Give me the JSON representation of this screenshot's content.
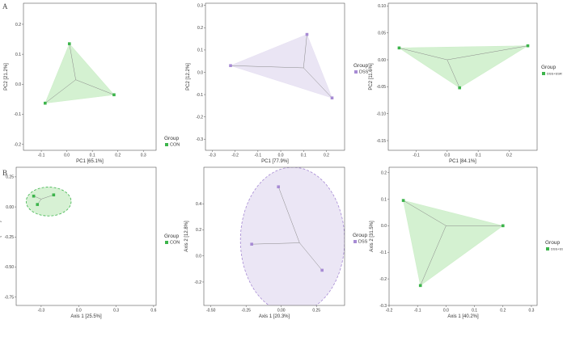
{
  "panel_labels": [
    "A",
    "B"
  ],
  "colors": {
    "con": "#3cb44b",
    "dss": "#a78bd4",
    "dss_ssr": "#3cb44b",
    "con_fill": "#cdeec9",
    "dss_fill": "#e6e0f2",
    "line": "#888888"
  },
  "chart_data": [
    {
      "type": "scatter",
      "hull": "polygon",
      "xlabel": "PC1 [65.1%]",
      "ylabel": "PC2 [21.2%]",
      "xlim": [
        -0.17,
        0.35
      ],
      "ylim": [
        -0.22,
        0.27
      ],
      "xticks": [
        -0.1,
        0,
        0.1,
        0.2,
        0.3
      ],
      "xticklabels": [
        "-0.1",
        "0.0",
        "0.1",
        "0.2",
        "0.3"
      ],
      "yticks": [
        -0.2,
        -0.1,
        0,
        0.1,
        0.2
      ],
      "yticklabels": [
        "-0.2",
        "-0.1",
        "0.0",
        "0.1",
        "0.2"
      ],
      "centroid": [
        0.035,
        0.015
      ],
      "legend_title": "Group",
      "series": [
        {
          "name": "CON",
          "color_key": "con",
          "points": [
            [
              0.01,
              0.135
            ],
            [
              -0.085,
              -0.063
            ],
            [
              0.185,
              -0.035
            ]
          ]
        }
      ]
    },
    {
      "type": "scatter",
      "hull": "polygon",
      "xlabel": "PC1 [77.9%]",
      "ylabel": "PC2 [12.2%]",
      "xlim": [
        -0.33,
        0.28
      ],
      "ylim": [
        -0.35,
        0.31
      ],
      "xticks": [
        -0.3,
        -0.2,
        -0.1,
        0,
        0.1,
        0.2
      ],
      "xticklabels": [
        "-0.3",
        "-0.2",
        "-0.1",
        "0.0",
        "0.1",
        "0.2"
      ],
      "yticks": [
        -0.3,
        -0.2,
        -0.1,
        0,
        0.1,
        0.2,
        0.3
      ],
      "yticklabels": [
        "-0.3",
        "-0.2",
        "-0.1",
        "0.0",
        "0.1",
        "0.2",
        "0.3"
      ],
      "centroid": [
        0.1,
        0.02
      ],
      "legend_title": "Group",
      "series": [
        {
          "name": "DSS",
          "color_key": "dss",
          "points": [
            [
              -0.22,
              0.03
            ],
            [
              0.115,
              0.17
            ],
            [
              0.225,
              -0.115
            ]
          ]
        }
      ]
    },
    {
      "type": "scatter",
      "hull": "polygon",
      "xlabel": "PC1 [84.1%]",
      "ylabel": "PC2 [11.6%]",
      "xlim": [
        -0.19,
        0.29
      ],
      "ylim": [
        -0.168,
        0.105
      ],
      "xticks": [
        -0.1,
        0,
        0.1,
        0.2
      ],
      "xticklabels": [
        "-0.1",
        "0.0",
        "0.1",
        "0.2"
      ],
      "yticks": [
        -0.15,
        -0.1,
        -0.05,
        0,
        0.05,
        0.1
      ],
      "yticklabels": [
        "-0.15",
        "-0.10",
        "-0.05",
        "0.00",
        "0.05",
        "0.10"
      ],
      "centroid": [
        0.0,
        0.0
      ],
      "legend_title": "Group",
      "series": [
        {
          "name": "DSS+SSR",
          "color_key": "dss_ssr",
          "points": [
            [
              -0.155,
              0.022
            ],
            [
              0.04,
              -0.052
            ],
            [
              0.26,
              0.026
            ]
          ]
        }
      ]
    },
    {
      "type": "scatter",
      "hull": "ellipse",
      "xlabel": "Axis 1 [25.5%]",
      "ylabel": "Axis 2 [16.4%]",
      "xlim": [
        -0.5,
        0.62
      ],
      "ylim": [
        -0.82,
        0.33
      ],
      "xticks": [
        -0.3,
        0,
        0.3,
        0.6
      ],
      "xticklabels": [
        "-0.3",
        "0.0",
        "0.3",
        "0.6"
      ],
      "yticks": [
        -0.75,
        -0.5,
        -0.25,
        0,
        0.25
      ],
      "yticklabels": [
        "-0.75",
        "-0.50",
        "-0.25",
        "0.00",
        "0.25"
      ],
      "centroid": [
        -0.3,
        0.065
      ],
      "ellipse": {
        "cx": -0.24,
        "cy": 0.045,
        "rx": 0.18,
        "ry": 0.12
      },
      "legend_title": "Group",
      "series": [
        {
          "name": "CON",
          "color_key": "con",
          "points": [
            [
              -0.36,
              0.09
            ],
            [
              -0.33,
              0.02
            ],
            [
              -0.2,
              0.1
            ]
          ]
        }
      ]
    },
    {
      "type": "scatter",
      "hull": "ellipse",
      "xlabel": "Axis 1 [20.3%]",
      "ylabel": "Axis 2 [12.8%]",
      "xlim": [
        -0.55,
        0.45
      ],
      "ylim": [
        -0.38,
        0.68
      ],
      "xticks": [
        -0.5,
        -0.25,
        0,
        0.25
      ],
      "xticklabels": [
        "-0.50",
        "-0.25",
        "0.00",
        "0.25"
      ],
      "yticks": [
        -0.2,
        0,
        0.2,
        0.4
      ],
      "yticklabels": [
        "-0.2",
        "0.0",
        "0.2",
        "0.4"
      ],
      "centroid": [
        0.13,
        0.1
      ],
      "ellipse": {
        "cx": 0.08,
        "cy": 0.12,
        "rx": 0.37,
        "ry": 0.56
      },
      "legend_title": "Group",
      "series": [
        {
          "name": "DSS",
          "color_key": "dss",
          "points": [
            [
              -0.02,
              0.53
            ],
            [
              -0.21,
              0.09
            ],
            [
              0.29,
              -0.11
            ]
          ]
        }
      ]
    },
    {
      "type": "scatter",
      "hull": "polygon",
      "xlabel": "Axis 1 [40.2%]",
      "ylabel": "Axis 2 [31.5%]",
      "xlim": [
        -0.2,
        0.32
      ],
      "ylim": [
        -0.3,
        0.22
      ],
      "xticks": [
        -0.2,
        -0.1,
        0,
        0.1,
        0.2,
        0.3
      ],
      "xticklabels": [
        "-0.2",
        "-0.1",
        "0.0",
        "0.1",
        "0.2",
        "0.3"
      ],
      "yticks": [
        -0.3,
        -0.2,
        -0.1,
        0,
        0.1,
        0.2
      ],
      "yticklabels": [
        "-0.3",
        "-0.2",
        "-0.1",
        "0.0",
        "0.1",
        "0.2"
      ],
      "centroid": [
        0.0,
        0.0
      ],
      "legend_title": "Group",
      "series": [
        {
          "name": "DSS+SSR",
          "color_key": "dss_ssr",
          "points": [
            [
              -0.15,
              0.095
            ],
            [
              -0.09,
              -0.225
            ],
            [
              0.2,
              0.0
            ]
          ]
        }
      ]
    }
  ]
}
